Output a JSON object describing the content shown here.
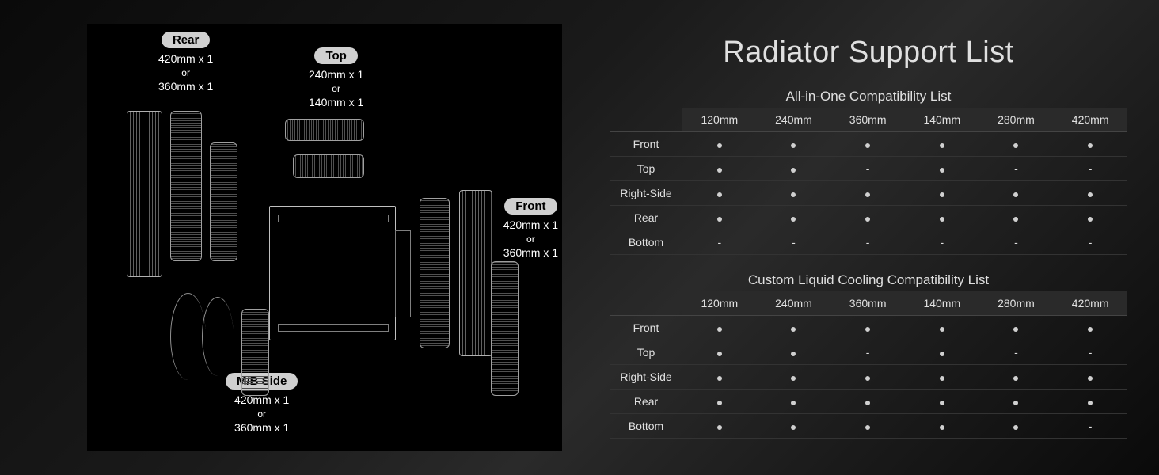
{
  "diagram": {
    "rear": {
      "label": "Rear",
      "line1": "420mm x 1",
      "or": "or",
      "line2": "360mm x 1"
    },
    "top": {
      "label": "Top",
      "line1": "240mm x 1",
      "or": "or",
      "line2": "140mm x 1"
    },
    "front": {
      "label": "Front",
      "line1": "420mm x 1",
      "or": "or",
      "line2": "360mm x 1"
    },
    "mb": {
      "label": "M/B Side",
      "line1": "420mm x 1",
      "or": "or",
      "line2": "360mm x 1"
    }
  },
  "title": "Radiator Support List",
  "aio": {
    "subtitle": "All-in-One Compatibility List",
    "columns": [
      "120mm",
      "240mm",
      "360mm",
      "140mm",
      "280mm",
      "420mm"
    ],
    "rows": [
      {
        "label": "Front",
        "values": [
          "•",
          "•",
          "•",
          "•",
          "•",
          "•"
        ]
      },
      {
        "label": "Top",
        "values": [
          "•",
          "•",
          "-",
          "•",
          "-",
          "-"
        ]
      },
      {
        "label": "Right-Side",
        "values": [
          "•",
          "•",
          "•",
          "•",
          "•",
          "•"
        ]
      },
      {
        "label": "Rear",
        "values": [
          "•",
          "•",
          "•",
          "•",
          "•",
          "•"
        ]
      },
      {
        "label": "Bottom",
        "values": [
          "-",
          "-",
          "-",
          "-",
          "-",
          "-"
        ]
      }
    ]
  },
  "custom": {
    "subtitle": "Custom Liquid Cooling Compatibility List",
    "columns": [
      "120mm",
      "240mm",
      "360mm",
      "140mm",
      "280mm",
      "420mm"
    ],
    "rows": [
      {
        "label": "Front",
        "values": [
          "•",
          "•",
          "•",
          "•",
          "•",
          "•"
        ]
      },
      {
        "label": "Top",
        "values": [
          "•",
          "•",
          "-",
          "•",
          "-",
          "-"
        ]
      },
      {
        "label": "Right-Side",
        "values": [
          "•",
          "•",
          "•",
          "•",
          "•",
          "•"
        ]
      },
      {
        "label": "Rear",
        "values": [
          "•",
          "•",
          "•",
          "•",
          "•",
          "•"
        ]
      },
      {
        "label": "Bottom",
        "values": [
          "•",
          "•",
          "•",
          "•",
          "•",
          "-"
        ]
      }
    ]
  }
}
